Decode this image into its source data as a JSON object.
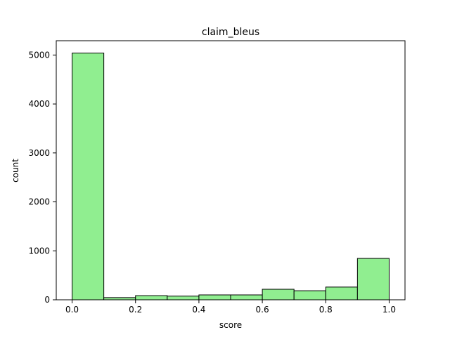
{
  "chart_data": {
    "type": "bar",
    "title": "claim_bleus",
    "xlabel": "score",
    "ylabel": "count",
    "bins": [
      {
        "start": 0.0,
        "end": 0.1,
        "count": 5040
      },
      {
        "start": 0.1,
        "end": 0.2,
        "count": 45
      },
      {
        "start": 0.2,
        "end": 0.3,
        "count": 85
      },
      {
        "start": 0.3,
        "end": 0.4,
        "count": 75
      },
      {
        "start": 0.4,
        "end": 0.5,
        "count": 100
      },
      {
        "start": 0.5,
        "end": 0.6,
        "count": 100
      },
      {
        "start": 0.6,
        "end": 0.7,
        "count": 215
      },
      {
        "start": 0.7,
        "end": 0.8,
        "count": 185
      },
      {
        "start": 0.8,
        "end": 0.9,
        "count": 260
      },
      {
        "start": 0.9,
        "end": 1.0,
        "count": 845
      }
    ],
    "xlim": [
      -0.05,
      1.05
    ],
    "ylim": [
      0,
      5292
    ],
    "xticks": [
      0.0,
      0.2,
      0.4,
      0.6,
      0.8,
      1.0
    ],
    "xtick_labels": [
      "0.0",
      "0.2",
      "0.4",
      "0.6",
      "0.8",
      "1.0"
    ],
    "yticks": [
      0,
      1000,
      2000,
      3000,
      4000,
      5000
    ],
    "ytick_labels": [
      "0",
      "1000",
      "2000",
      "3000",
      "4000",
      "5000"
    ],
    "bar_color": "#90ee90",
    "edge_color": "#000000",
    "grid": false
  }
}
